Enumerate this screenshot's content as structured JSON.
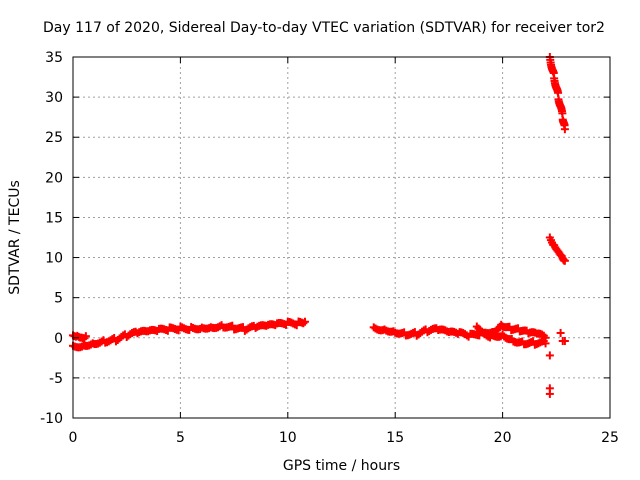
{
  "chart_data": {
    "type": "scatter",
    "title": "Day 117 of 2020, Sidereal Day-to-day VTEC variation (SDTVAR) for receiver tor2",
    "xlabel": "GPS time / hours",
    "ylabel": "SDTVAR / TECUs",
    "xlim": [
      0,
      25
    ],
    "ylim": [
      -10,
      35
    ],
    "xticks": [
      0,
      5,
      10,
      15,
      20,
      25
    ],
    "yticks": [
      -10,
      -5,
      0,
      5,
      10,
      15,
      20,
      25,
      30,
      35
    ],
    "grid": true,
    "marker": "+",
    "color": "#ff0000",
    "series": [
      {
        "name": "SDTVAR",
        "segments": [
          {
            "x": [
              0.0,
              0.5,
              1.0,
              1.5,
              2.0,
              2.5,
              3.0,
              3.5,
              4.0,
              4.5,
              5.0,
              5.5,
              6.0,
              6.5,
              7.0,
              7.5,
              8.0,
              8.5,
              9.0,
              9.5,
              10.0,
              10.5,
              10.8
            ],
            "y": [
              -1.0,
              -0.8,
              -0.5,
              -0.3,
              -0.2,
              0.2,
              0.5,
              0.6,
              0.8,
              1.0,
              1.2,
              1.3,
              1.4,
              1.5,
              1.6,
              1.3,
              1.0,
              1.2,
              1.3,
              1.5,
              1.7,
              1.8,
              2.0
            ]
          },
          {
            "x": [
              0.0,
              0.2,
              0.4,
              0.6
            ],
            "y": [
              0.3,
              0.4,
              0.3,
              0.2
            ]
          },
          {
            "x": [
              14.0,
              14.5,
              15.0,
              15.5,
              16.0,
              16.5,
              17.0,
              17.5,
              18.0,
              18.5,
              19.0,
              19.5,
              20.0,
              20.5,
              21.0,
              21.5,
              22.0
            ],
            "y": [
              1.3,
              1.2,
              0.9,
              0.6,
              0.5,
              0.8,
              0.9,
              0.5,
              0.4,
              0.2,
              0.6,
              0.3,
              0.5,
              -0.2,
              -0.5,
              -0.6,
              -0.7
            ]
          },
          {
            "x": [
              18.8,
              19.2,
              19.6,
              20.0,
              20.4,
              20.8,
              21.2,
              21.6,
              22.0
            ],
            "y": [
              1.4,
              0.8,
              1.0,
              1.7,
              1.2,
              0.9,
              0.5,
              0.3,
              0.0
            ]
          },
          {
            "x": [
              22.2,
              22.4,
              22.6,
              22.8,
              22.9
            ],
            "y": [
              35.0,
              32.5,
              30.0,
              27.5,
              26.0
            ]
          },
          {
            "x": [
              22.2,
              22.4,
              22.6,
              22.8,
              22.9
            ],
            "y": [
              12.5,
              11.7,
              11.0,
              10.2,
              9.6
            ]
          },
          {
            "x": [
              22.2,
              22.2,
              22.2,
              22.7,
              22.8,
              22.9
            ],
            "y": [
              -2.2,
              -6.3,
              -7.0,
              0.6,
              -0.4,
              -0.4
            ]
          }
        ]
      }
    ]
  }
}
